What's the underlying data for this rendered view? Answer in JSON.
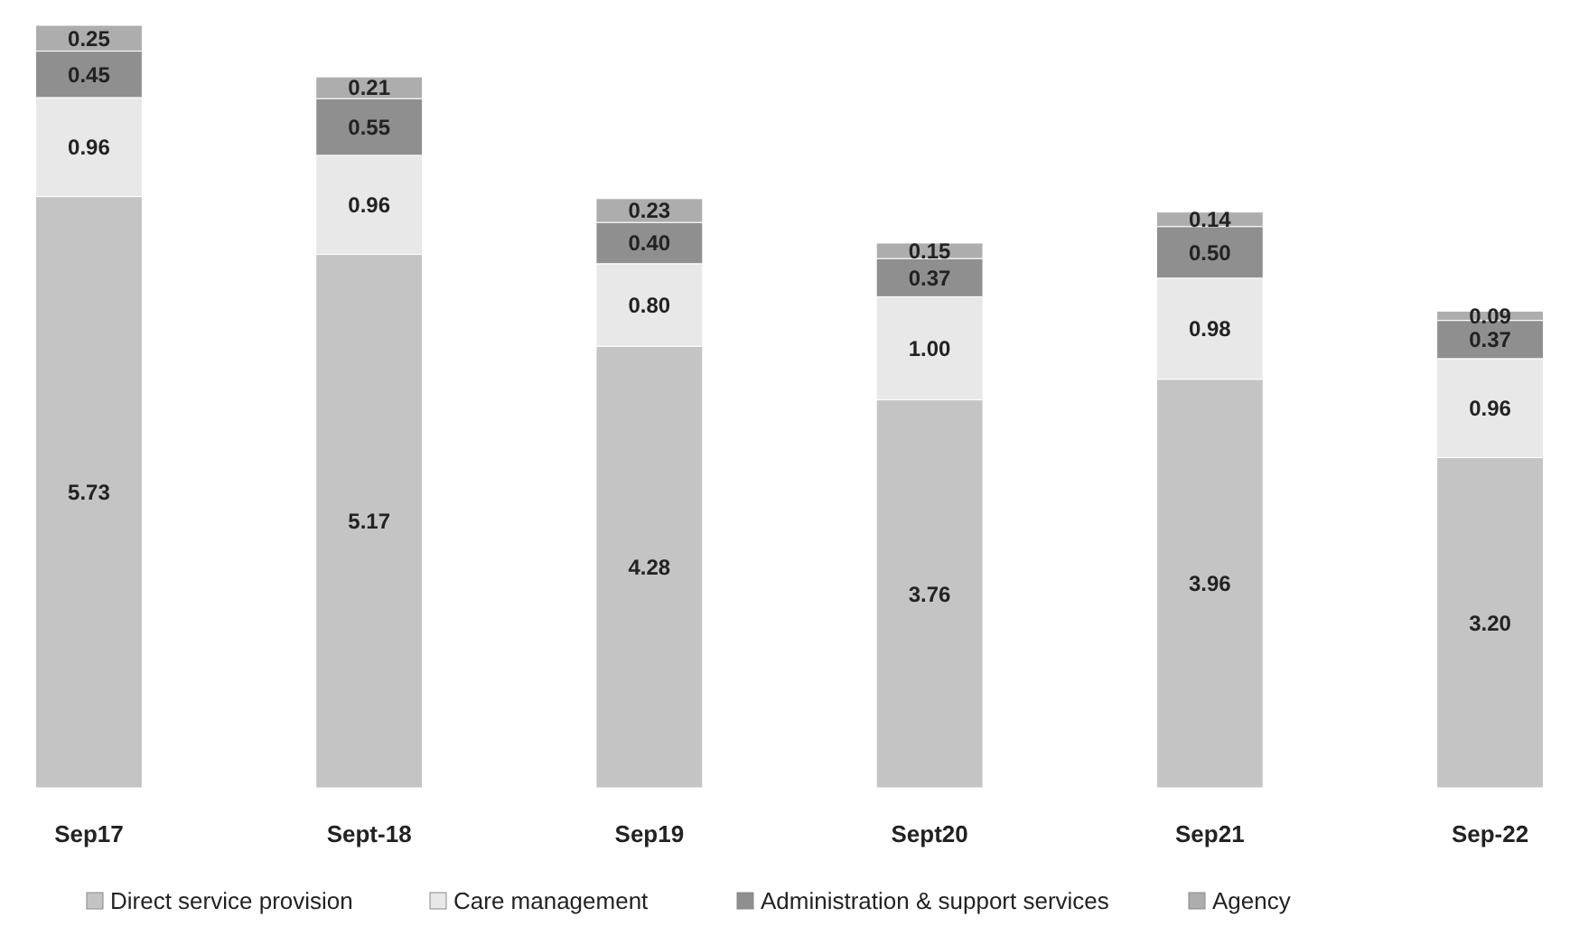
{
  "chart_data": {
    "type": "bar",
    "stacked": true,
    "legend": "bottom",
    "categories": [
      "Sep17",
      "Sept-18",
      "Sep19",
      "Sept20",
      "Sep21",
      "Sep-22"
    ],
    "series": [
      {
        "name": "Direct service provision",
        "color": "#c4c4c4",
        "values": [
          5.73,
          5.17,
          4.28,
          3.76,
          3.96,
          3.2
        ],
        "value_labels": [
          "5.73",
          "5.17",
          "4.28",
          "3.76",
          "3.96",
          "3.20"
        ]
      },
      {
        "name": "Care management",
        "color": "#e8e8e8",
        "values": [
          0.96,
          0.96,
          0.8,
          1.0,
          0.98,
          0.96
        ],
        "value_labels": [
          "0.96",
          "0.96",
          "0.80",
          "1.00",
          "0.98",
          "0.96"
        ]
      },
      {
        "name": "Administration & support services",
        "color": "#8f8f8f",
        "values": [
          0.45,
          0.55,
          0.4,
          0.37,
          0.5,
          0.37
        ],
        "value_labels": [
          "0.45",
          "0.55",
          "0.40",
          "0.37",
          "0.50",
          "0.37"
        ]
      },
      {
        "name": "Agency",
        "color": "#adadad",
        "values": [
          0.25,
          0.21,
          0.23,
          0.15,
          0.14,
          0.09
        ],
        "value_labels": [
          "0.25",
          "0.21",
          "0.23",
          "0.15",
          "0.14",
          "0.09"
        ]
      }
    ]
  }
}
